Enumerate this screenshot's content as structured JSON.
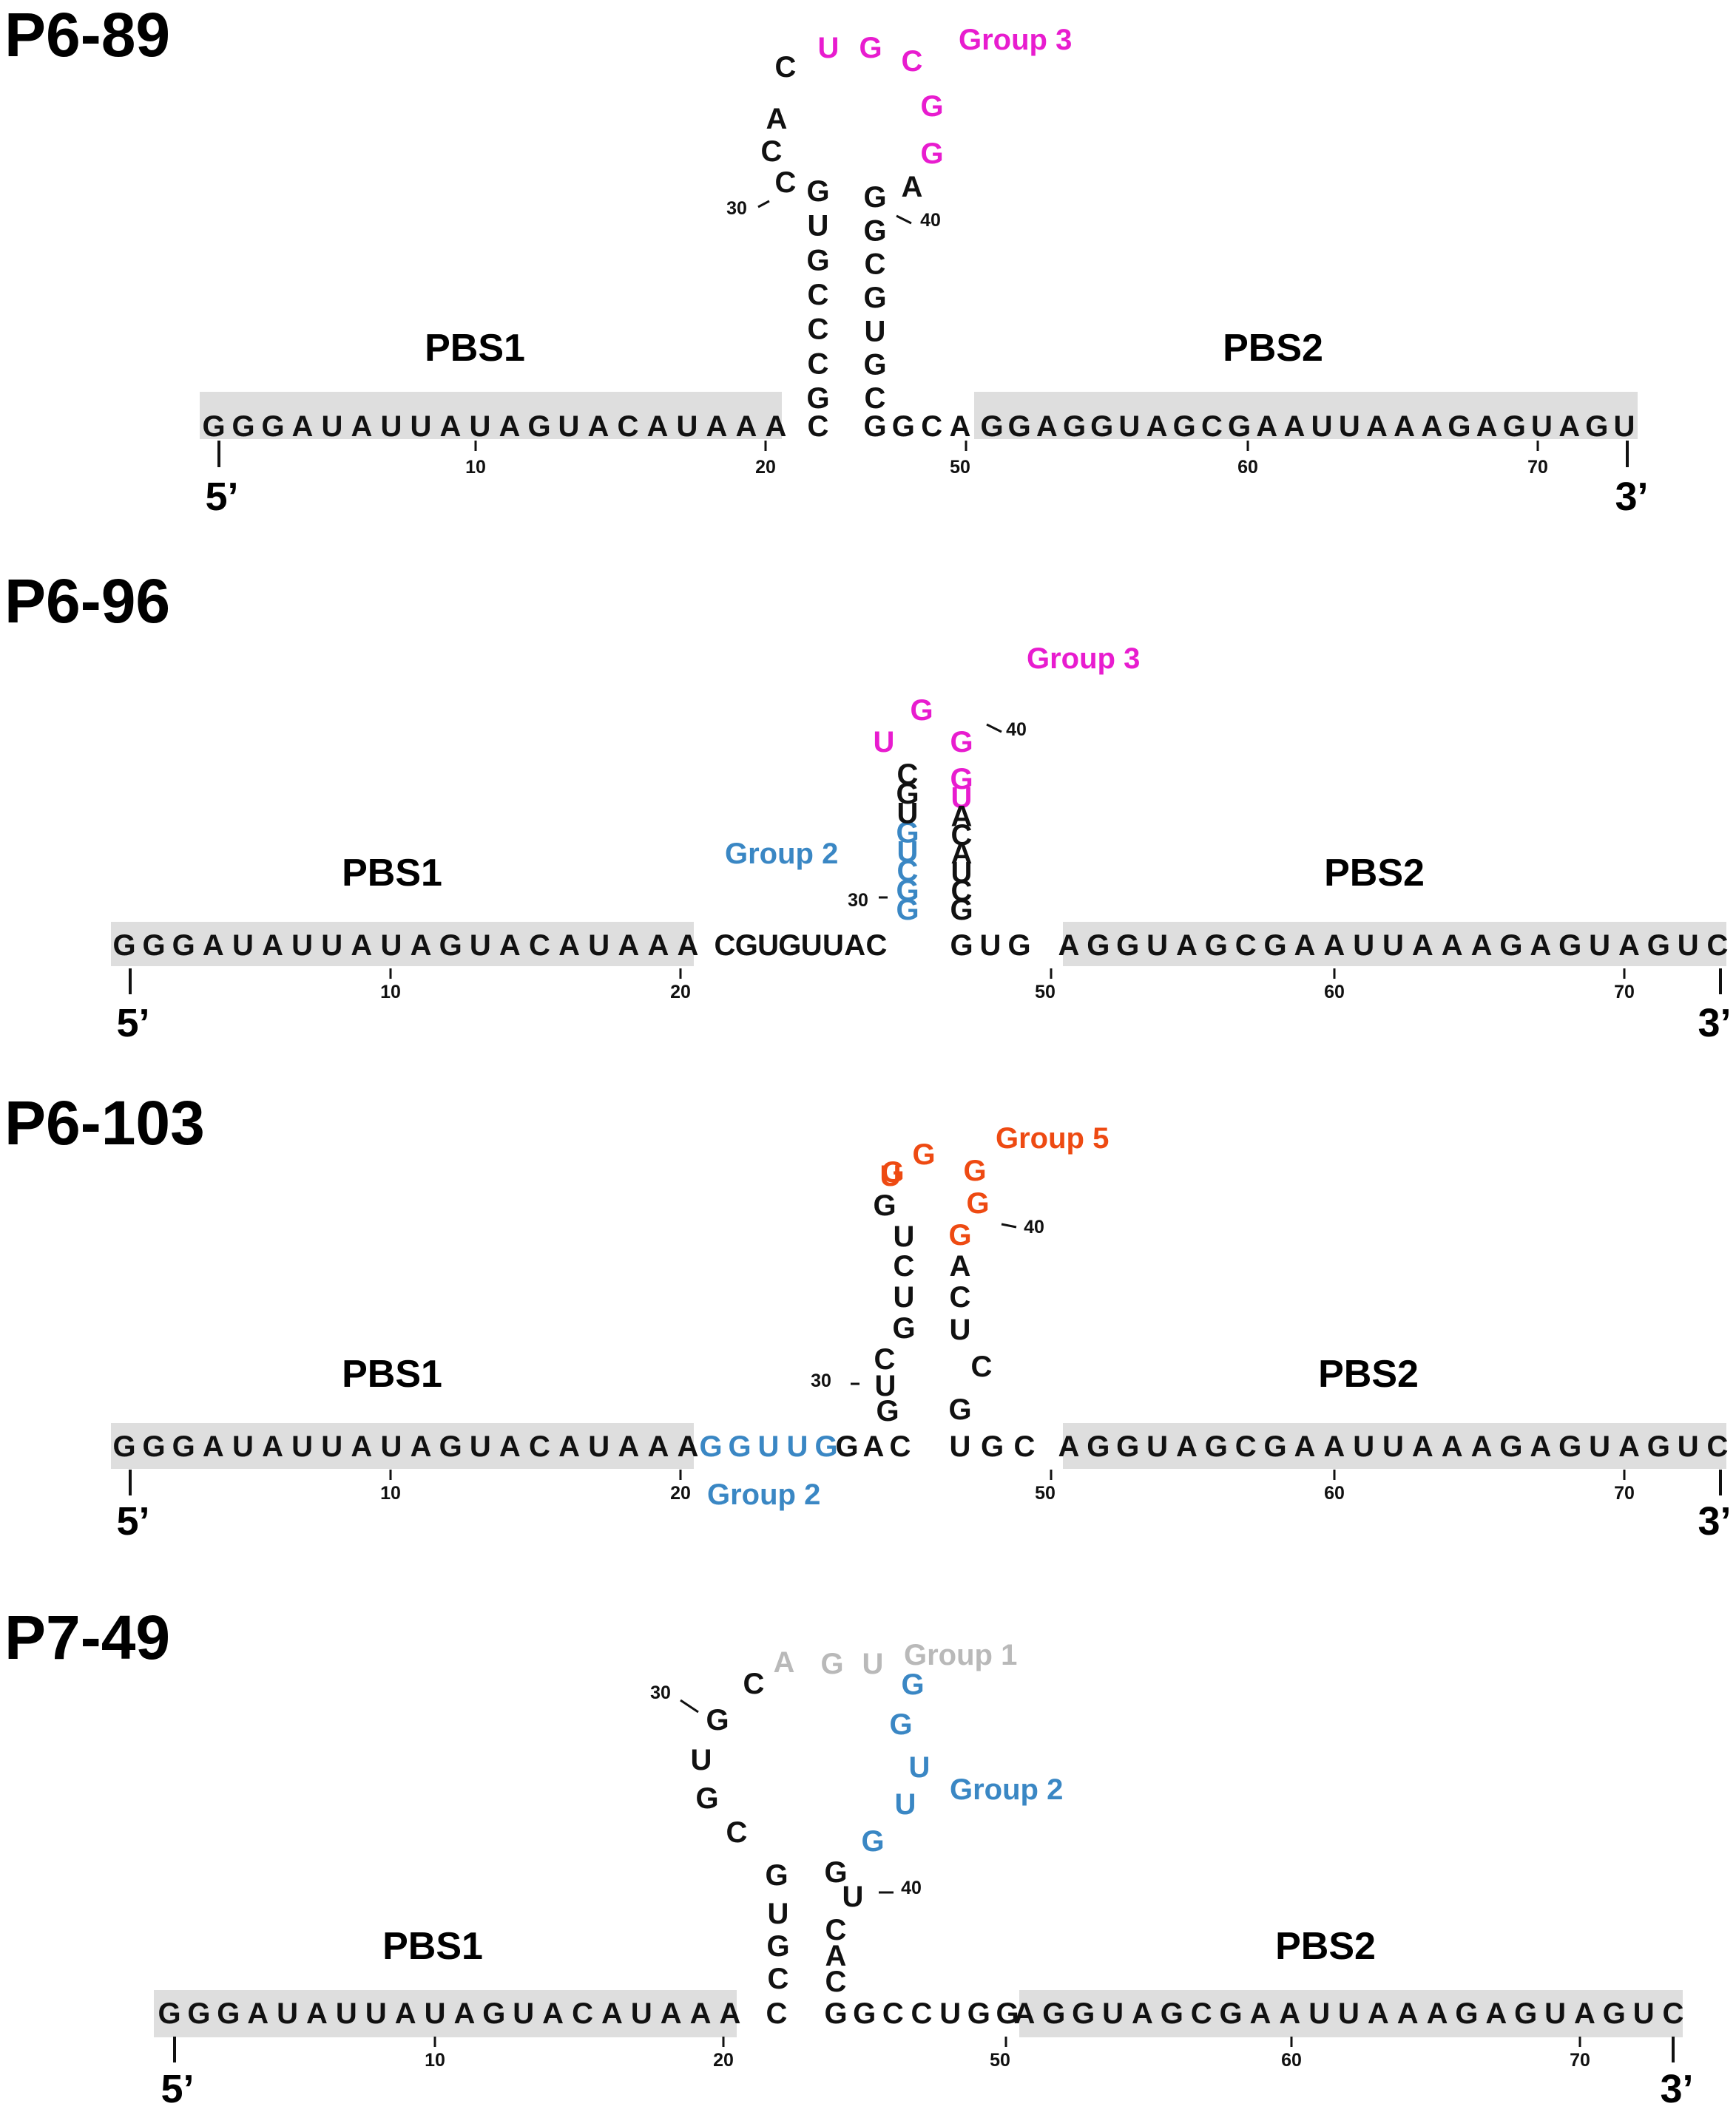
{
  "colors": {
    "black": "#111111",
    "magenta": "#e81ccf",
    "blue": "#3a87c4",
    "orange": "#ee4a12",
    "gray": "#b9b9b9",
    "pbs_bar": "#dedede"
  },
  "panels": [
    {
      "title": "P6-89",
      "pbs1_label": "PBS1",
      "pbs2_label": "PBS2",
      "five_prime": "5’",
      "three_prime": "3’",
      "sequence": "GGGAUAUUAUAGUACAUAAACGCCCGUGCCACUGCGGAGGCGUGCGGCAGGAGGUAGCGAAUUAAAGAGUAGUC",
      "position_ticks": [
        "10",
        "20",
        "50",
        "60",
        "70"
      ],
      "stem_ticks": [
        "30",
        "40"
      ],
      "groups": [
        {
          "label": "Group 3",
          "color": "magenta",
          "positions": [
            33,
            34,
            35,
            36,
            37
          ]
        }
      ]
    },
    {
      "title": "P6-96",
      "pbs1_label": "PBS1",
      "pbs2_label": "PBS2",
      "five_prime": "5’",
      "three_prime": "3’",
      "sequence": "GGGAUAUUAUAGUACAUAAACGUGUUACGGCUGUGCUGGGUACAUCGGUGAGGUAGCGAAUUAAAGAGUAGUC",
      "position_ticks": [
        "10",
        "20",
        "50",
        "60",
        "70"
      ],
      "stem_ticks": [
        "30",
        "40"
      ],
      "groups": [
        {
          "label": "Group 2",
          "color": "blue",
          "positions": [
            29,
            30,
            31,
            32,
            33
          ]
        },
        {
          "label": "Group 3",
          "color": "magenta",
          "positions": [
            37,
            38,
            39,
            40,
            41
          ]
        }
      ]
    },
    {
      "title": "P6-103",
      "pbs1_label": "PBS1",
      "pbs2_label": "PBS2",
      "five_prime": "5’",
      "three_prime": "3’",
      "sequence": "GGGAUAUUAUAGUACAUAAAGGUUGGACGUCGUCUGUGGGGGACUCGUGCAGGUAGCGAAUUAAAGAGUAGUC",
      "position_ticks": [
        "10",
        "20",
        "50",
        "60",
        "70"
      ],
      "stem_ticks": [
        "30",
        "40"
      ],
      "groups": [
        {
          "label": "Group 2",
          "color": "blue",
          "positions": [
            21,
            22,
            23,
            24,
            25
          ]
        },
        {
          "label": "Group 5",
          "color": "orange",
          "positions": [
            37,
            38,
            39,
            40,
            41,
            42
          ]
        }
      ]
    },
    {
      "title": "P7-49",
      "pbs1_label": "PBS1",
      "pbs2_label": "PBS2",
      "five_prime": "5’",
      "three_prime": "3’",
      "sequence": "GGGAUAUUAUAGUACAUAAACCGUGCGUGCAGUGGUUGGUCACGGCCUGGAGGUAGCGAAUUAAAGAGUAGUC",
      "position_ticks": [
        "10",
        "20",
        "50",
        "60",
        "70"
      ],
      "stem_ticks": [
        "30",
        "40"
      ],
      "groups": [
        {
          "label": "Group 1",
          "color": "gray",
          "positions": [
            31,
            32,
            33
          ]
        },
        {
          "label": "Group 2",
          "color": "blue",
          "positions": [
            34,
            35,
            36,
            37,
            38
          ]
        }
      ]
    }
  ]
}
